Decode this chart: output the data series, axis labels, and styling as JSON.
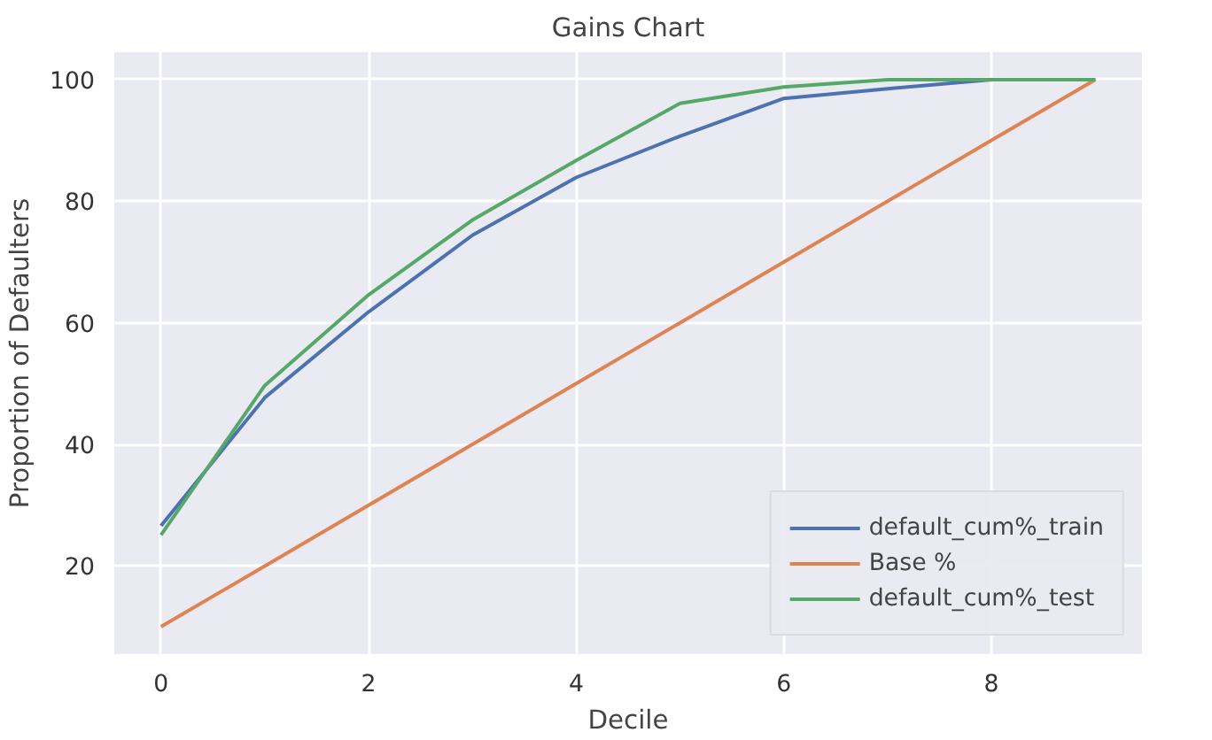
{
  "chart_data": {
    "type": "line",
    "title": "Gains Chart",
    "xlabel": "Decile",
    "ylabel": "Proportion of Defaulters",
    "x": [
      0,
      1,
      2,
      3,
      4,
      5,
      6,
      7,
      8,
      9
    ],
    "series": [
      {
        "name": "default_cum%_train",
        "color": "#4c72b0",
        "values": [
          26.6,
          47.7,
          61.8,
          74.4,
          83.9,
          90.7,
          96.9,
          98.5,
          100,
          100
        ]
      },
      {
        "name": "Base %",
        "color": "#dd8452",
        "values": [
          10,
          20,
          30,
          40,
          50,
          60,
          70,
          80,
          90,
          100
        ]
      },
      {
        "name": "default_cum%_test",
        "color": "#55a868",
        "values": [
          25.1,
          49.7,
          64.6,
          76.9,
          86.7,
          96.1,
          98.8,
          100,
          100,
          100
        ]
      }
    ],
    "xlim": [
      -0.45,
      9.45
    ],
    "ylim": [
      5.5,
      104.5
    ],
    "xticks": [
      0,
      2,
      4,
      6,
      8
    ],
    "yticks": [
      20,
      40,
      60,
      80,
      100
    ],
    "grid": true,
    "legend": "bottom right",
    "marker": "none",
    "line_style": "solid"
  }
}
